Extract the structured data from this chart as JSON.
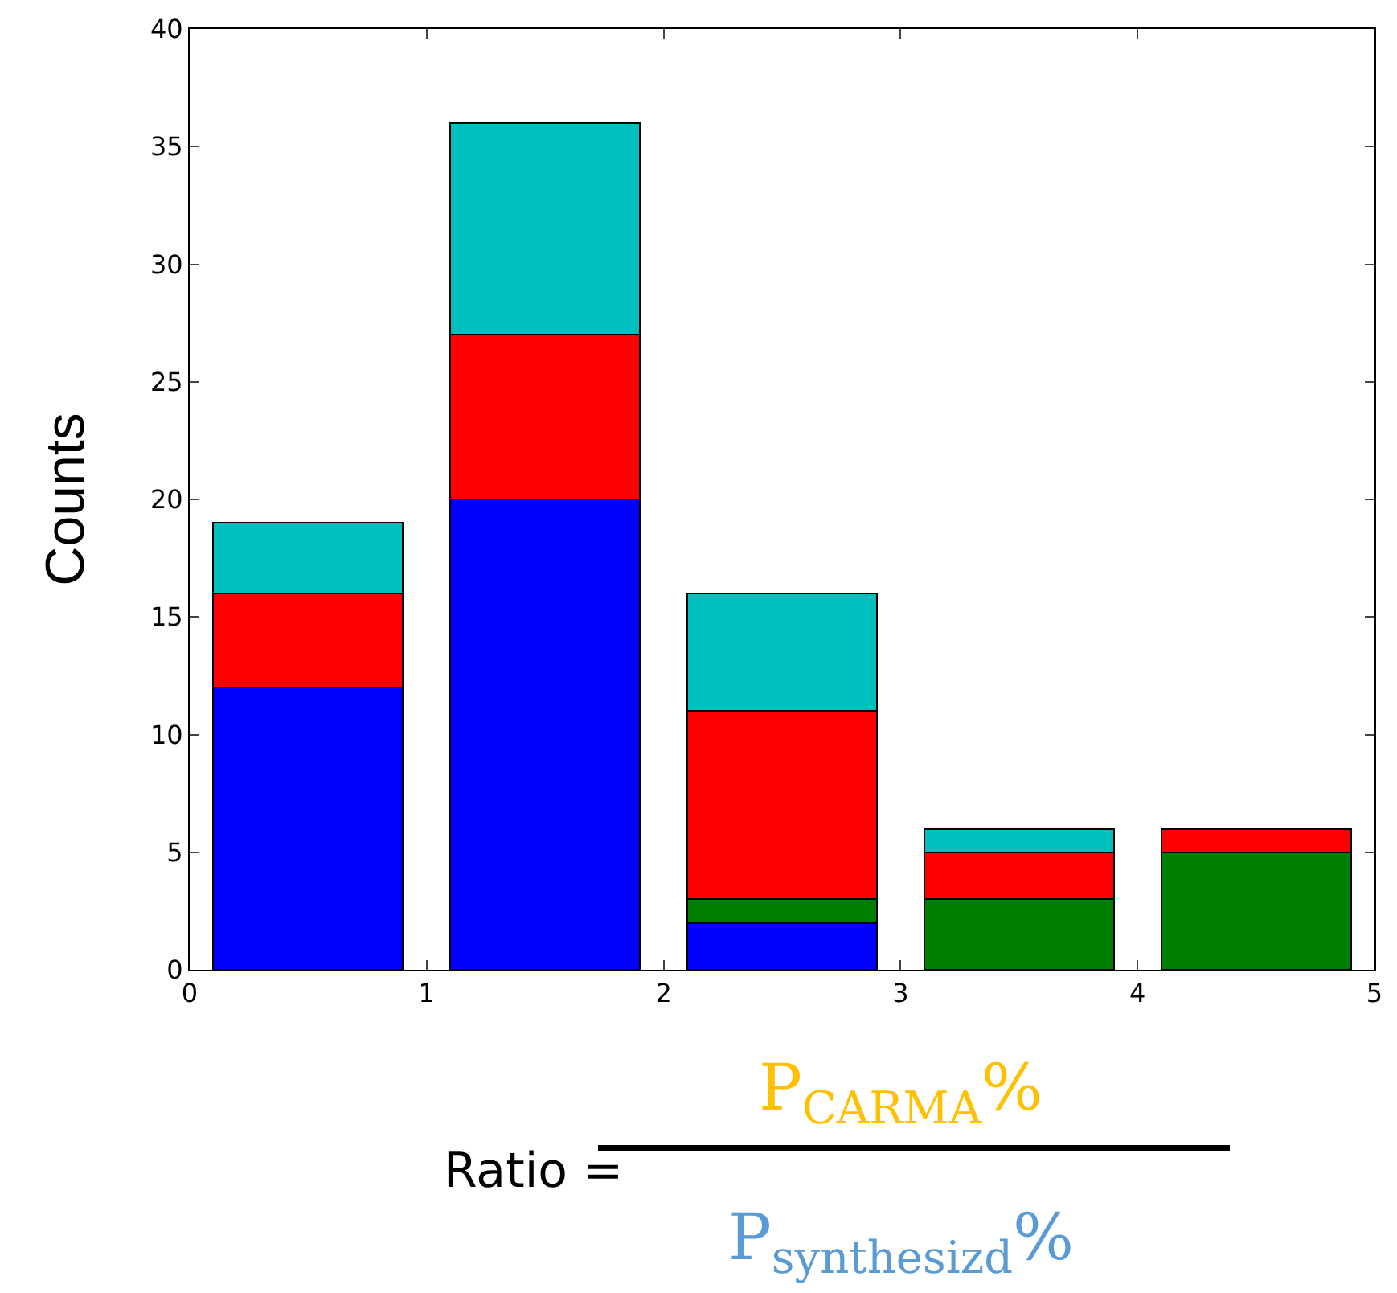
{
  "chart_data": {
    "type": "bar",
    "stacked": true,
    "ylabel": "Counts",
    "x": [
      0.5,
      1.5,
      2.5,
      3.5,
      4.5
    ],
    "series": [
      {
        "color": "#0000ff",
        "values": [
          12,
          20,
          2,
          0,
          0
        ]
      },
      {
        "color": "#008000",
        "values": [
          0,
          0,
          1,
          3,
          5
        ]
      },
      {
        "color": "#ff0000",
        "values": [
          4,
          7,
          8,
          2,
          1
        ]
      },
      {
        "color": "#00bfbf",
        "values": [
          3,
          9,
          5,
          1,
          0
        ]
      }
    ],
    "xlim": [
      0,
      5
    ],
    "xticks": [
      0,
      1,
      2,
      3,
      4,
      5
    ],
    "ylim": [
      0,
      40
    ],
    "yticks": [
      0,
      5,
      10,
      15,
      20,
      25,
      30,
      35,
      40
    ],
    "annotations": [
      "Ratio =",
      "P$_{CARMA}$%",
      "P$_{synthesizd}$%"
    ]
  }
}
